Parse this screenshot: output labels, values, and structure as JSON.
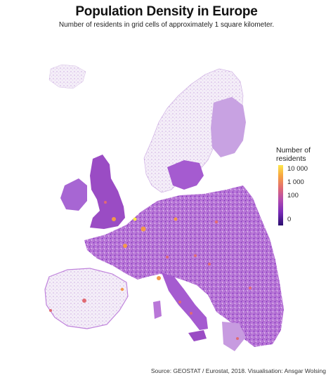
{
  "title": "Population Density in Europe",
  "subtitle": "Number of residents in grid cells of approximately 1 square kilometer.",
  "legend": {
    "title_line1": "Number of",
    "title_line2": "residents",
    "ticks": [
      "10 000",
      "1 000",
      "100",
      "0"
    ],
    "colors": [
      "#fde74c",
      "#f7a440",
      "#e06a73",
      "#b14bb0",
      "#7a2bb8",
      "#2a0f6e"
    ]
  },
  "source": "Source: GEOSTAT / Eurostat, 2018. Visualisation: Ansgar Wolsing",
  "map_colors": {
    "sparse": "#e9ddf1",
    "low": "#c79be0",
    "medium": "#9a4cc4",
    "high": "#7427a8",
    "urban": "#f2994a",
    "dense": "#fde74c"
  }
}
